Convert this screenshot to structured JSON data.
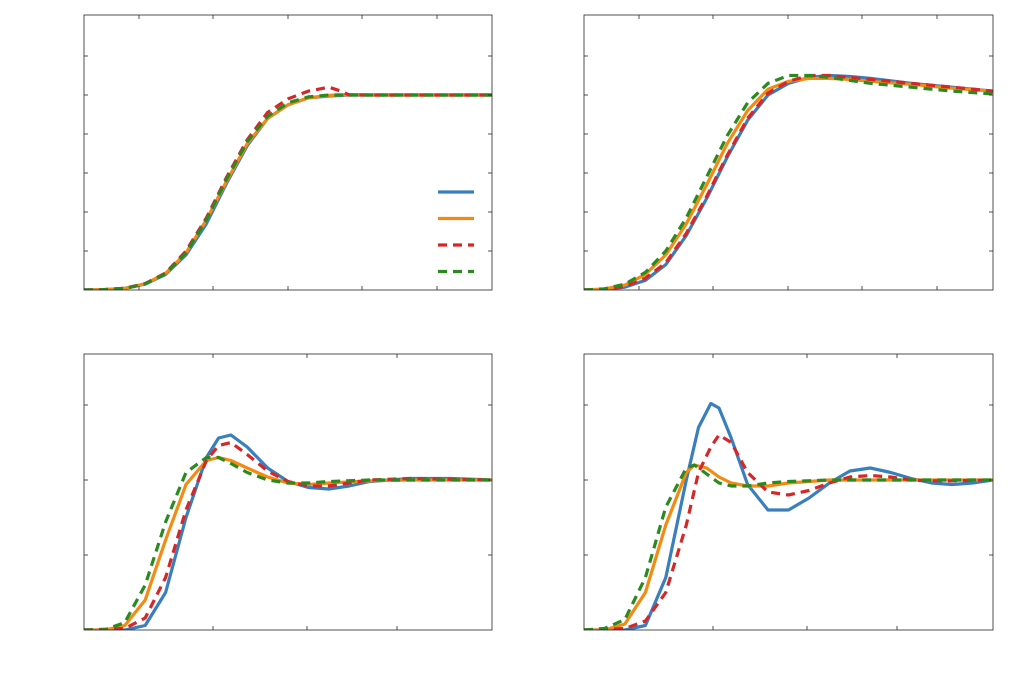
{
  "chart_data": [
    {
      "type": "line",
      "panel": "top-left",
      "title": "",
      "xlabel": "",
      "ylabel": "",
      "xlim": [
        0,
        1
      ],
      "ylim": [
        0,
        1.4
      ],
      "grid": false,
      "legend": "right",
      "series": [
        {
          "id": "s1",
          "color": "#3a7fbd",
          "dash": false,
          "x": [
            0,
            0.05,
            0.1,
            0.15,
            0.2,
            0.25,
            0.3,
            0.35,
            0.4,
            0.45,
            0.5,
            0.55,
            0.6,
            0.65,
            0.7,
            0.75,
            0.8,
            0.85,
            0.9,
            0.95,
            1.0
          ],
          "y": [
            0,
            0.002,
            0.008,
            0.03,
            0.08,
            0.18,
            0.34,
            0.55,
            0.74,
            0.88,
            0.95,
            0.985,
            0.995,
            1.0,
            1.0,
            1.0,
            1.0,
            1.0,
            1.0,
            1.0,
            1.0
          ]
        },
        {
          "id": "s2",
          "color": "#f58a12",
          "dash": false,
          "x": [
            0,
            0.05,
            0.1,
            0.15,
            0.2,
            0.25,
            0.3,
            0.35,
            0.4,
            0.45,
            0.5,
            0.55,
            0.6,
            0.65,
            0.7,
            0.75,
            0.8,
            0.85,
            0.9,
            0.95,
            1.0
          ],
          "y": [
            0,
            0.002,
            0.008,
            0.032,
            0.085,
            0.19,
            0.36,
            0.56,
            0.75,
            0.88,
            0.95,
            0.985,
            0.998,
            1.002,
            1.0,
            1.0,
            1.0,
            1.0,
            1.0,
            1.0,
            1.0
          ]
        },
        {
          "id": "s3",
          "color": "#d62728",
          "dash": true,
          "x": [
            0,
            0.05,
            0.1,
            0.15,
            0.2,
            0.25,
            0.3,
            0.35,
            0.4,
            0.45,
            0.5,
            0.55,
            0.6,
            0.63,
            0.65,
            0.7,
            0.75,
            0.8,
            0.85,
            0.9,
            0.95,
            1.0
          ],
          "y": [
            0,
            0.002,
            0.009,
            0.033,
            0.087,
            0.2,
            0.37,
            0.58,
            0.77,
            0.91,
            0.98,
            1.02,
            1.04,
            1.02,
            1.0,
            1.0,
            1.0,
            1.0,
            1.0,
            1.0,
            1.0,
            1.0
          ]
        },
        {
          "id": "s4",
          "color": "#2a8a20",
          "dash": true,
          "x": [
            0,
            0.05,
            0.1,
            0.15,
            0.2,
            0.25,
            0.3,
            0.35,
            0.4,
            0.45,
            0.5,
            0.55,
            0.6,
            0.65,
            0.7,
            0.75,
            0.8,
            0.85,
            0.9,
            0.95,
            1.0
          ],
          "y": [
            0,
            0.002,
            0.008,
            0.031,
            0.083,
            0.19,
            0.36,
            0.57,
            0.76,
            0.89,
            0.96,
            0.99,
            1.0,
            1.0,
            1.0,
            1.0,
            1.0,
            1.0,
            1.0,
            1.0,
            1.0
          ]
        }
      ]
    },
    {
      "type": "line",
      "panel": "top-right",
      "title": "",
      "xlabel": "",
      "ylabel": "",
      "xlim": [
        0,
        1
      ],
      "ylim": [
        0,
        1.4
      ],
      "grid": false,
      "series": [
        {
          "id": "s1",
          "color": "#3a7fbd",
          "dash": false,
          "x": [
            0,
            0.05,
            0.1,
            0.15,
            0.2,
            0.25,
            0.3,
            0.35,
            0.4,
            0.45,
            0.5,
            0.55,
            0.6,
            0.65,
            0.7,
            0.8,
            0.9,
            1.0
          ],
          "y": [
            0,
            0.003,
            0.015,
            0.05,
            0.13,
            0.28,
            0.47,
            0.68,
            0.87,
            1.0,
            1.06,
            1.09,
            1.1,
            1.095,
            1.085,
            1.06,
            1.04,
            1.02
          ]
        },
        {
          "id": "s2",
          "color": "#f58a12",
          "dash": false,
          "x": [
            0,
            0.05,
            0.1,
            0.15,
            0.2,
            0.25,
            0.3,
            0.35,
            0.4,
            0.45,
            0.5,
            0.55,
            0.6,
            0.65,
            0.7,
            0.8,
            0.9,
            1.0
          ],
          "y": [
            0,
            0.005,
            0.025,
            0.08,
            0.18,
            0.34,
            0.54,
            0.75,
            0.92,
            1.03,
            1.07,
            1.085,
            1.085,
            1.08,
            1.07,
            1.055,
            1.035,
            1.02
          ]
        },
        {
          "id": "s3",
          "color": "#d62728",
          "dash": true,
          "x": [
            0,
            0.05,
            0.1,
            0.15,
            0.2,
            0.25,
            0.3,
            0.35,
            0.4,
            0.45,
            0.5,
            0.55,
            0.6,
            0.65,
            0.7,
            0.8,
            0.9,
            1.0
          ],
          "y": [
            0,
            0.004,
            0.018,
            0.06,
            0.14,
            0.29,
            0.48,
            0.69,
            0.88,
            1.01,
            1.07,
            1.1,
            1.1,
            1.09,
            1.08,
            1.06,
            1.04,
            1.02
          ]
        },
        {
          "id": "s4",
          "color": "#2a8a20",
          "dash": true,
          "x": [
            0,
            0.05,
            0.1,
            0.15,
            0.2,
            0.25,
            0.3,
            0.35,
            0.4,
            0.45,
            0.5,
            0.55,
            0.6,
            0.65,
            0.7,
            0.8,
            0.9,
            1.0
          ],
          "y": [
            0,
            0.006,
            0.03,
            0.09,
            0.2,
            0.37,
            0.58,
            0.79,
            0.96,
            1.06,
            1.1,
            1.1,
            1.09,
            1.075,
            1.06,
            1.04,
            1.02,
            1.005
          ]
        }
      ]
    },
    {
      "type": "line",
      "panel": "bottom-left",
      "title": "",
      "xlabel": "",
      "ylabel": "",
      "xlim": [
        0,
        1
      ],
      "ylim": [
        0,
        1.5
      ],
      "grid": false,
      "series": [
        {
          "id": "s1",
          "color": "#3a7fbd",
          "dash": false,
          "x": [
            0,
            0.1,
            0.15,
            0.2,
            0.25,
            0.3,
            0.33,
            0.36,
            0.4,
            0.45,
            0.5,
            0.55,
            0.6,
            0.65,
            0.7,
            0.8,
            0.9,
            1.0
          ],
          "y": [
            0,
            0.0,
            0.03,
            0.25,
            0.75,
            1.15,
            1.28,
            1.3,
            1.22,
            1.08,
            0.99,
            0.95,
            0.94,
            0.96,
            0.99,
            1.01,
            1.01,
            1.0
          ]
        },
        {
          "id": "s2",
          "color": "#f58a12",
          "dash": false,
          "x": [
            0,
            0.05,
            0.1,
            0.15,
            0.2,
            0.25,
            0.3,
            0.33,
            0.36,
            0.4,
            0.45,
            0.5,
            0.55,
            0.6,
            0.7,
            0.8,
            0.9,
            1.0
          ],
          "y": [
            0,
            0.0,
            0.03,
            0.2,
            0.6,
            0.97,
            1.13,
            1.15,
            1.13,
            1.08,
            1.02,
            0.98,
            0.97,
            0.98,
            0.995,
            1.0,
            1.0,
            1.0
          ]
        },
        {
          "id": "s3",
          "color": "#d62728",
          "dash": true,
          "x": [
            0,
            0.1,
            0.15,
            0.2,
            0.25,
            0.3,
            0.33,
            0.36,
            0.4,
            0.45,
            0.5,
            0.55,
            0.6,
            0.65,
            0.7,
            0.8,
            0.9,
            1.0
          ],
          "y": [
            0,
            0.01,
            0.08,
            0.35,
            0.8,
            1.13,
            1.23,
            1.25,
            1.17,
            1.06,
            0.99,
            0.96,
            0.96,
            0.98,
            1.0,
            1.01,
            1.005,
            1.0
          ]
        },
        {
          "id": "s4",
          "color": "#2a8a20",
          "dash": true,
          "x": [
            0,
            0.05,
            0.1,
            0.15,
            0.2,
            0.25,
            0.3,
            0.33,
            0.36,
            0.4,
            0.45,
            0.5,
            0.55,
            0.6,
            0.7,
            0.8,
            0.9,
            1.0
          ],
          "y": [
            0,
            0.0,
            0.05,
            0.3,
            0.72,
            1.05,
            1.15,
            1.15,
            1.11,
            1.05,
            1.0,
            0.98,
            0.98,
            0.99,
            1.0,
            1.0,
            1.0,
            1.0
          ]
        }
      ]
    },
    {
      "type": "line",
      "panel": "bottom-right",
      "title": "",
      "xlabel": "",
      "ylabel": "",
      "xlim": [
        0,
        1
      ],
      "ylim": [
        0,
        1.5
      ],
      "grid": false,
      "series": [
        {
          "id": "s1",
          "color": "#3a7fbd",
          "dash": false,
          "x": [
            0,
            0.1,
            0.15,
            0.2,
            0.25,
            0.28,
            0.31,
            0.33,
            0.36,
            0.4,
            0.45,
            0.5,
            0.55,
            0.6,
            0.65,
            0.7,
            0.75,
            0.8,
            0.85,
            0.9,
            0.95,
            1.0
          ],
          "y": [
            0,
            0.0,
            0.03,
            0.35,
            1.0,
            1.35,
            1.51,
            1.48,
            1.28,
            0.97,
            0.8,
            0.8,
            0.88,
            0.98,
            1.06,
            1.08,
            1.05,
            1.01,
            0.98,
            0.97,
            0.98,
            1.0
          ]
        },
        {
          "id": "s2",
          "color": "#f58a12",
          "dash": false,
          "x": [
            0,
            0.05,
            0.1,
            0.15,
            0.2,
            0.25,
            0.27,
            0.3,
            0.33,
            0.36,
            0.4,
            0.45,
            0.5,
            0.6,
            0.7,
            0.8,
            0.9,
            1.0
          ],
          "y": [
            0,
            0.0,
            0.04,
            0.25,
            0.7,
            1.05,
            1.1,
            1.08,
            1.02,
            0.98,
            0.96,
            0.96,
            0.98,
            1.0,
            1.0,
            1.0,
            1.0,
            1.0
          ]
        },
        {
          "id": "s3",
          "color": "#d62728",
          "dash": true,
          "x": [
            0,
            0.1,
            0.15,
            0.2,
            0.25,
            0.28,
            0.31,
            0.33,
            0.36,
            0.4,
            0.45,
            0.5,
            0.55,
            0.6,
            0.65,
            0.7,
            0.75,
            0.8,
            0.85,
            0.9,
            1.0
          ],
          "y": [
            0,
            0.01,
            0.06,
            0.25,
            0.7,
            1.05,
            1.22,
            1.3,
            1.25,
            1.05,
            0.92,
            0.9,
            0.93,
            0.98,
            1.02,
            1.03,
            1.02,
            1.0,
            0.995,
            0.995,
            1.0
          ]
        },
        {
          "id": "s4",
          "color": "#2a8a20",
          "dash": true,
          "x": [
            0,
            0.05,
            0.1,
            0.15,
            0.2,
            0.25,
            0.27,
            0.3,
            0.33,
            0.36,
            0.4,
            0.45,
            0.5,
            0.6,
            0.7,
            0.8,
            0.9,
            1.0
          ],
          "y": [
            0,
            0.01,
            0.07,
            0.35,
            0.82,
            1.08,
            1.1,
            1.04,
            0.98,
            0.96,
            0.96,
            0.98,
            0.99,
            1.0,
            1.0,
            1.0,
            1.0,
            1.0
          ]
        }
      ]
    }
  ]
}
